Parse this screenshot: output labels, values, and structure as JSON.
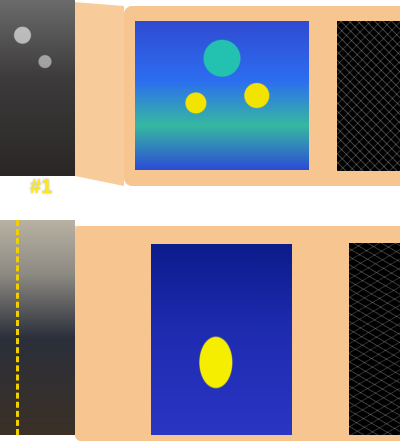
{
  "label": "#1",
  "colors": {
    "panel_fill": "#F7C58F",
    "label_text": "#FFE61A"
  }
}
